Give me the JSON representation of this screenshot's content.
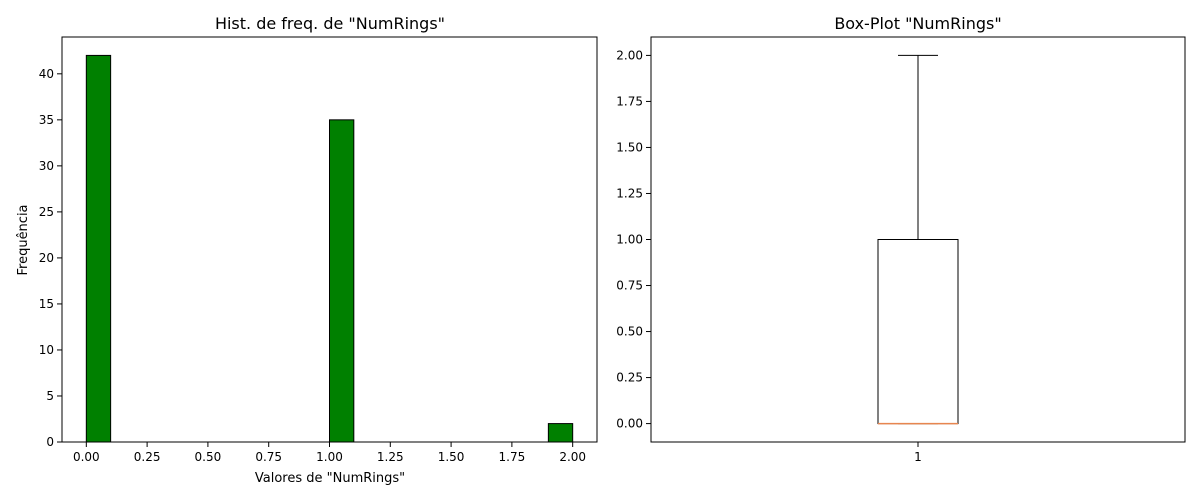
{
  "chart_data": [
    {
      "type": "bar",
      "title": "Hist. de freq. de \"NumRings\"",
      "xlabel": "Valores de \"NumRings\"",
      "ylabel": "Frequência",
      "xlim": [
        -0.1,
        2.1
      ],
      "ylim": [
        0,
        44
      ],
      "xticks": [
        0,
        0.25,
        0.5,
        0.75,
        1.0,
        1.25,
        1.5,
        1.75,
        2.0
      ],
      "xtick_labels": [
        "0.00",
        "0.25",
        "0.50",
        "0.75",
        "1.00",
        "1.25",
        "1.50",
        "1.75",
        "2.00"
      ],
      "yticks": [
        0,
        5,
        10,
        15,
        20,
        25,
        30,
        35,
        40
      ],
      "yticks_labels": [
        "0",
        "5",
        "10",
        "15",
        "20",
        "25",
        "30",
        "35",
        "40"
      ],
      "bin_width": 0.1,
      "bins": [
        {
          "x0": 0.0,
          "x1": 0.1,
          "count": 42
        },
        {
          "x0": 1.0,
          "x1": 1.1,
          "count": 35
        },
        {
          "x0": 1.9,
          "x1": 2.0,
          "count": 2
        }
      ],
      "bar_color": "#008000",
      "edge_color": "#000000",
      "grid": false
    },
    {
      "type": "box",
      "title": "Box-Plot \"NumRings\"",
      "categories": [
        "1"
      ],
      "ylim": [
        -0.1,
        2.1
      ],
      "yticks": [
        0,
        0.25,
        0.5,
        0.75,
        1.0,
        1.25,
        1.5,
        1.75,
        2.0
      ],
      "yticks_labels": [
        "0.00",
        "0.25",
        "0.50",
        "0.75",
        "1.00",
        "1.25",
        "1.50",
        "1.75",
        "2.00"
      ],
      "box": {
        "whisker_low": 0,
        "q1": 0,
        "median": 0,
        "q3": 1,
        "whisker_high": 2
      },
      "median_color": "#e8864f",
      "grid": false
    }
  ]
}
